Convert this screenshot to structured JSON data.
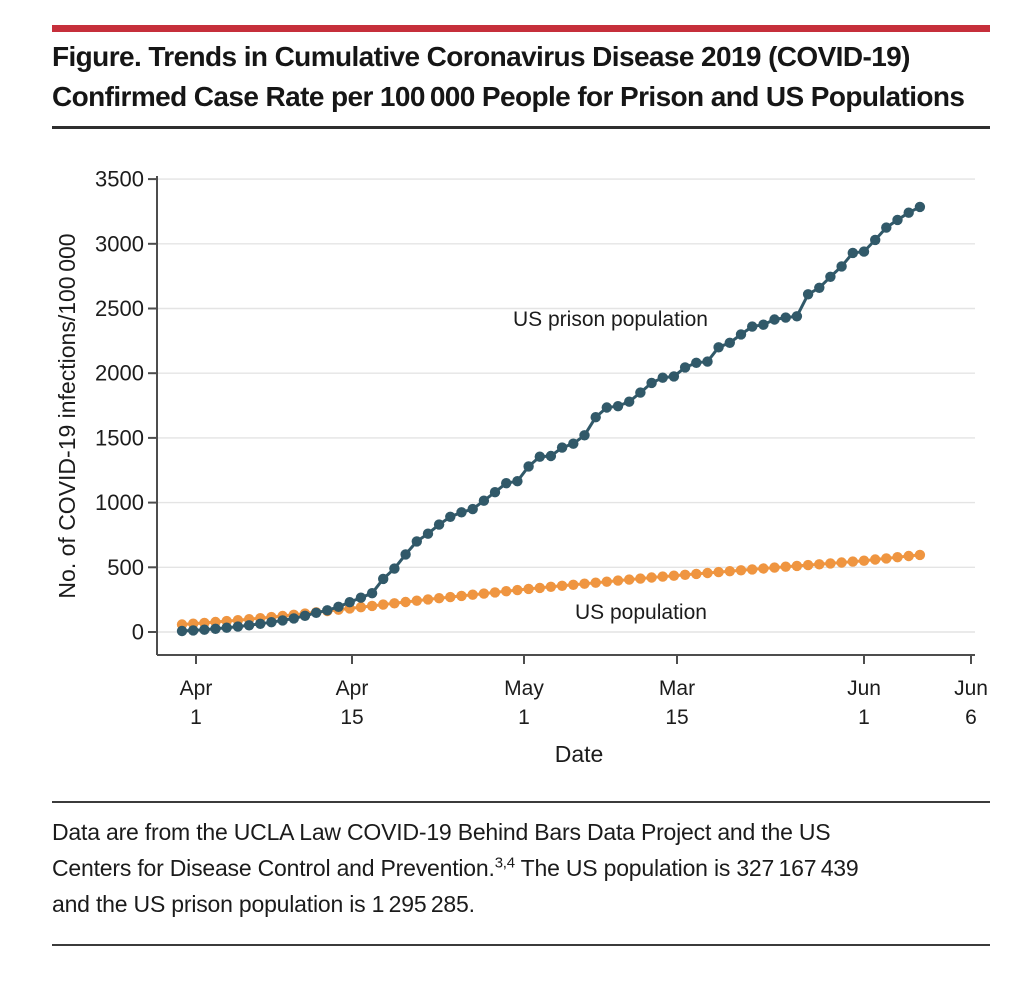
{
  "figure": {
    "accent_color": "#c62f3b",
    "title_line1": "Figure. Trends in Cumulative Coronavirus Disease 2019 (COVID-19)",
    "title_line2": "Confirmed Case Rate per 100 000 People for Prison and US Populations"
  },
  "caption": {
    "line1": "Data are from the UCLA Law COVID-19 Behind Bars Data Project and the US",
    "line2_pre": "Centers for Disease Control and Prevention.",
    "line2_sup": "3,4",
    "line2_post": " The US population is 327 167 439",
    "line3": "and the US prison population is 1 295 285."
  },
  "chart_data": {
    "type": "line",
    "title": "",
    "xlabel": "Date",
    "ylabel": "No. of COVID-19 infections/100 000",
    "ylim": [
      0,
      3500
    ],
    "y_ticks": [
      0,
      500,
      1000,
      1500,
      2000,
      2500,
      3000,
      3500
    ],
    "x_tick_labels": [
      [
        "Apr",
        "1"
      ],
      [
        "Apr",
        "15"
      ],
      [
        "May",
        "1"
      ],
      [
        "Mar",
        "15"
      ],
      [
        "Jun",
        "1"
      ],
      [
        "Jun",
        "6"
      ]
    ],
    "x_description": "Daily cumulative rate, Apr 1 through Jun 6 (67 daily points per series)",
    "grid": "horizontal",
    "legend": "inline labels next to each curve",
    "series": [
      {
        "name": "US prison population",
        "color": "#315969",
        "values": [
          8,
          12,
          18,
          25,
          33,
          42,
          52,
          63,
          76,
          90,
          105,
          125,
          148,
          168,
          195,
          230,
          265,
          300,
          410,
          490,
          600,
          700,
          760,
          830,
          890,
          925,
          950,
          1015,
          1080,
          1150,
          1165,
          1280,
          1355,
          1360,
          1425,
          1455,
          1520,
          1660,
          1735,
          1745,
          1780,
          1850,
          1925,
          1965,
          1975,
          2045,
          2080,
          2090,
          2200,
          2235,
          2300,
          2360,
          2375,
          2415,
          2430,
          2440,
          2610,
          2660,
          2745,
          2825,
          2930,
          2940,
          3030,
          3125,
          3185,
          3240,
          3285
        ]
      },
      {
        "name": "US population",
        "color": "#ef9540",
        "values": [
          58,
          64,
          70,
          77,
          84,
          91,
          99,
          107,
          115,
          124,
          133,
          142,
          152,
          162,
          172,
          182,
          192,
          202,
          212,
          222,
          232,
          242,
          252,
          261,
          270,
          279,
          288,
          297,
          306,
          315,
          324,
          333,
          341,
          349,
          357,
          365,
          373,
          381,
          389,
          397,
          405,
          413,
          421,
          428,
          435,
          442,
          449,
          456,
          463,
          470,
          477,
          484,
          491,
          498,
          505,
          511,
          517,
          523,
          530,
          537,
          544,
          551,
          560,
          569,
          578,
          587,
          596
        ]
      }
    ]
  }
}
